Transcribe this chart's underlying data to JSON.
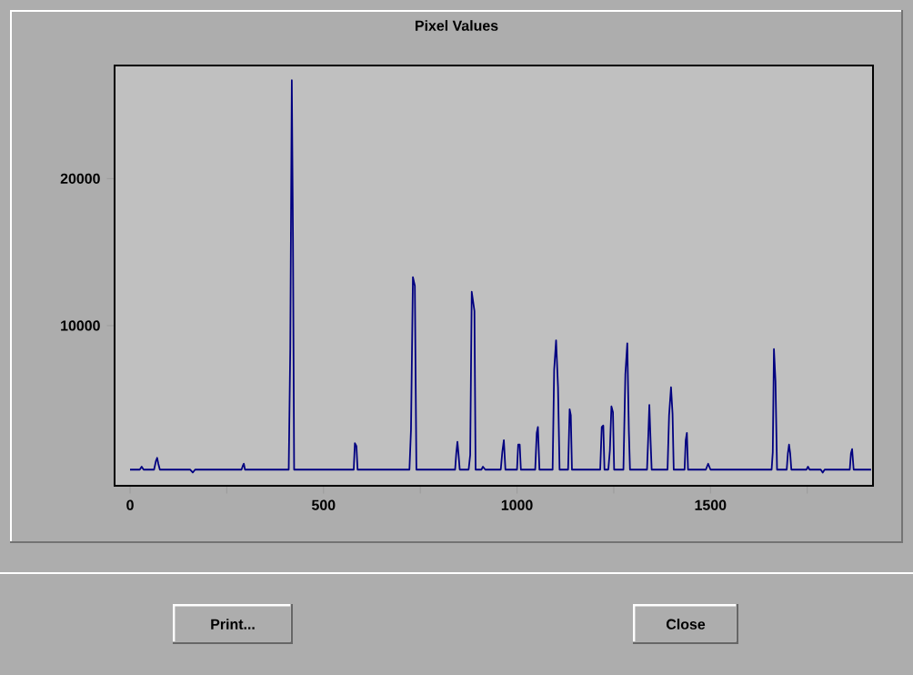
{
  "chart_data": {
    "type": "line",
    "title": "Pixel Values",
    "x": [
      0,
      25,
      30,
      35,
      62,
      67,
      70,
      73,
      77,
      155,
      162,
      168,
      288,
      292,
      294,
      297,
      410,
      414,
      418,
      421,
      424,
      578,
      581,
      585,
      588,
      722,
      726,
      731,
      736,
      740,
      840,
      843,
      846,
      849,
      852,
      875,
      879,
      883,
      890,
      893,
      908,
      912,
      918,
      958,
      962,
      966,
      970,
      1000,
      1003,
      1007,
      1010,
      1047,
      1051,
      1054,
      1058,
      1092,
      1096,
      1101,
      1106,
      1110,
      1132,
      1136,
      1139,
      1142,
      1215,
      1219,
      1223,
      1226,
      1236,
      1240,
      1244,
      1248,
      1251,
      1275,
      1280,
      1285,
      1289,
      1292,
      1336,
      1339,
      1342,
      1345,
      1348,
      1389,
      1393,
      1398,
      1402,
      1405,
      1433,
      1436,
      1439,
      1442,
      1488,
      1494,
      1500,
      1658,
      1661,
      1664,
      1668,
      1672,
      1697,
      1700,
      1703,
      1706,
      1709,
      1748,
      1752,
      1756,
      1785,
      1790,
      1795,
      1860,
      1863,
      1866,
      1870,
      1915
    ],
    "values": [
      200,
      200,
      400,
      200,
      200,
      800,
      1000,
      600,
      200,
      200,
      0,
      200,
      200,
      500,
      600,
      200,
      200,
      8400,
      26700,
      16000,
      200,
      200,
      2000,
      1800,
      200,
      200,
      2900,
      13300,
      12700,
      200,
      200,
      1300,
      2100,
      1200,
      200,
      200,
      1200,
      12300,
      11000,
      200,
      200,
      400,
      200,
      200,
      1400,
      2200,
      200,
      200,
      1900,
      1900,
      200,
      200,
      2700,
      3100,
      200,
      200,
      7000,
      9000,
      5800,
      200,
      200,
      4300,
      3900,
      200,
      200,
      3100,
      3200,
      200,
      200,
      1500,
      4500,
      4100,
      200,
      200,
      6700,
      8800,
      2900,
      200,
      200,
      2300,
      4600,
      2300,
      200,
      200,
      3900,
      5800,
      4000,
      200,
      200,
      2200,
      2700,
      200,
      200,
      600,
      200,
      200,
      1400,
      8400,
      6200,
      200,
      200,
      1300,
      1900,
      1300,
      200,
      200,
      400,
      200,
      200,
      0,
      200,
      200,
      1300,
      1600,
      200,
      200
    ],
    "color": "#000080",
    "marker": "none",
    "xlim": [
      -40,
      1920
    ],
    "ylim": [
      -900,
      27700
    ],
    "xticks": [
      0,
      {
        "value": 250,
        "label": null
      },
      500,
      {
        "value": 750,
        "label": null
      },
      1000,
      {
        "value": 1250,
        "label": null
      },
      1500,
      {
        "value": 1750,
        "label": null
      }
    ],
    "yticks": [
      10000,
      20000
    ],
    "annotations": [
      "Print...",
      "Close"
    ]
  }
}
